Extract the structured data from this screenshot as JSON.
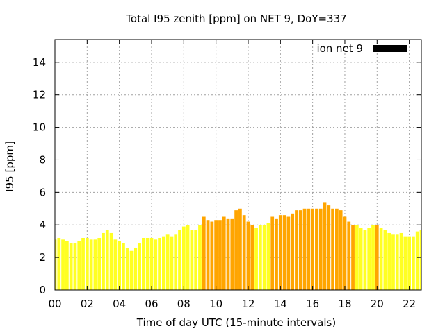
{
  "colors": {
    "low": "#ffff22",
    "high": "#ffa500",
    "legend_swatch": "#000000",
    "grid": "#a0a0a0"
  },
  "chart_data": {
    "type": "bar",
    "title": "Total I95 zenith [ppm] on NET 9, DoY=337",
    "xlabel": "Time of day UTC (15-minute intervals)",
    "ylabel": "I95 [ppm]",
    "xlim": [
      0,
      22.75
    ],
    "ylim": [
      0,
      15.4
    ],
    "x_tick_labels": [
      "00",
      "02",
      "04",
      "06",
      "08",
      "10",
      "12",
      "14",
      "16",
      "18",
      "20",
      "22"
    ],
    "x_tick_values": [
      0,
      2,
      4,
      6,
      8,
      10,
      12,
      14,
      16,
      18,
      20,
      22
    ],
    "y_ticks": [
      0,
      2,
      4,
      6,
      8,
      10,
      12,
      14
    ],
    "grid": true,
    "legend": {
      "label": "ion net 9",
      "position": "top-right"
    },
    "bar_interval_hours": 0.25,
    "series": [
      {
        "name": "ion net 9",
        "values": [
          3.1,
          3.2,
          3.1,
          3.0,
          2.9,
          2.9,
          3.0,
          3.2,
          3.2,
          3.1,
          3.1,
          3.2,
          3.5,
          3.7,
          3.5,
          3.1,
          3.0,
          2.9,
          2.6,
          2.4,
          2.6,
          2.9,
          3.2,
          3.2,
          3.2,
          3.1,
          3.2,
          3.3,
          3.4,
          3.3,
          3.4,
          3.7,
          3.9,
          4.0,
          3.7,
          3.7,
          4.0,
          4.5,
          4.3,
          4.2,
          4.3,
          4.3,
          4.5,
          4.4,
          4.4,
          4.9,
          5.0,
          4.6,
          4.2,
          4.0,
          3.8,
          4.0,
          4.0,
          4.1,
          4.5,
          4.4,
          4.6,
          4.6,
          4.5,
          4.7,
          4.9,
          4.9,
          5.0,
          5.0,
          5.0,
          5.0,
          5.0,
          5.4,
          5.2,
          5.0,
          5.0,
          4.9,
          4.5,
          4.2,
          4.0,
          4.0,
          3.8,
          3.7,
          3.8,
          4.0,
          4.0,
          3.8,
          3.7,
          3.5,
          3.4,
          3.4,
          3.5,
          3.3,
          3.3,
          3.3,
          3.6,
          3.7
        ],
        "category": [
          "low",
          "low",
          "low",
          "low",
          "low",
          "low",
          "low",
          "low",
          "low",
          "low",
          "low",
          "low",
          "low",
          "low",
          "low",
          "low",
          "low",
          "low",
          "low",
          "low",
          "low",
          "low",
          "low",
          "low",
          "low",
          "low",
          "low",
          "low",
          "low",
          "low",
          "low",
          "low",
          "low",
          "low",
          "low",
          "low",
          "low",
          "high",
          "high",
          "high",
          "high",
          "high",
          "high",
          "high",
          "high",
          "high",
          "high",
          "high",
          "high",
          "high",
          "low",
          "low",
          "low",
          "low",
          "high",
          "high",
          "high",
          "high",
          "high",
          "high",
          "high",
          "high",
          "high",
          "high",
          "high",
          "high",
          "high",
          "high",
          "high",
          "high",
          "high",
          "high",
          "high",
          "high",
          "high",
          "low",
          "low",
          "low",
          "low",
          "low",
          "high",
          "low",
          "low",
          "low",
          "low",
          "low",
          "low",
          "low",
          "low",
          "low",
          "low",
          "low"
        ]
      }
    ]
  }
}
